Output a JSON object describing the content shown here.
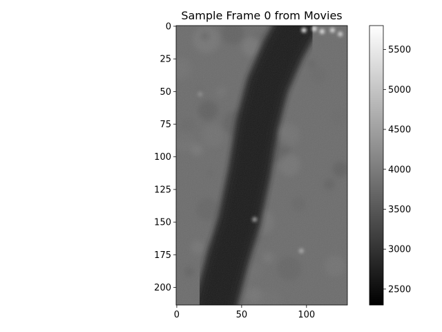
{
  "chart_data": {
    "type": "heatmap",
    "title": "Sample Frame 0 from Movies",
    "xlabel": "",
    "ylabel": "",
    "colormap": "gray",
    "image_shape": {
      "rows": 214,
      "cols": 132
    },
    "xlim": [
      -0.5,
      131.5
    ],
    "ylim": [
      213.5,
      -0.5
    ],
    "x_ticks": [
      0,
      50,
      100
    ],
    "x_tick_labels": [
      "0",
      "50",
      "100"
    ],
    "y_ticks": [
      0,
      25,
      50,
      75,
      100,
      125,
      150,
      175,
      200
    ],
    "y_tick_labels": [
      "0",
      "25",
      "50",
      "75",
      "100",
      "125",
      "150",
      "175",
      "200"
    ],
    "colorbar": {
      "range": [
        2300,
        5800
      ],
      "ticks": [
        2500,
        3000,
        3500,
        4000,
        4500,
        5000,
        5500
      ],
      "tick_labels": [
        "2500",
        "3000",
        "3500",
        "4000",
        "4500",
        "5000",
        "5500"
      ]
    },
    "features": {
      "background_level": 3800,
      "vessel_band": {
        "description": "dark diagonal band",
        "level": 2650,
        "center_path": [
          [
            30,
            213
          ],
          [
            40,
            175
          ],
          [
            48,
            150
          ],
          [
            56,
            112
          ],
          [
            62,
            75
          ],
          [
            70,
            45
          ],
          [
            82,
            18
          ],
          [
            92,
            0
          ]
        ]
      },
      "bright_spots": [
        {
          "x": 98,
          "y": 3,
          "level": 5600
        },
        {
          "x": 106,
          "y": 2,
          "level": 5500
        },
        {
          "x": 112,
          "y": 4,
          "level": 5400
        },
        {
          "x": 120,
          "y": 3,
          "level": 5300
        },
        {
          "x": 126,
          "y": 6,
          "level": 5200
        },
        {
          "x": 60,
          "y": 148,
          "level": 4500
        },
        {
          "x": 96,
          "y": 172,
          "level": 4600
        },
        {
          "x": 18,
          "y": 52,
          "level": 4200
        }
      ]
    }
  }
}
